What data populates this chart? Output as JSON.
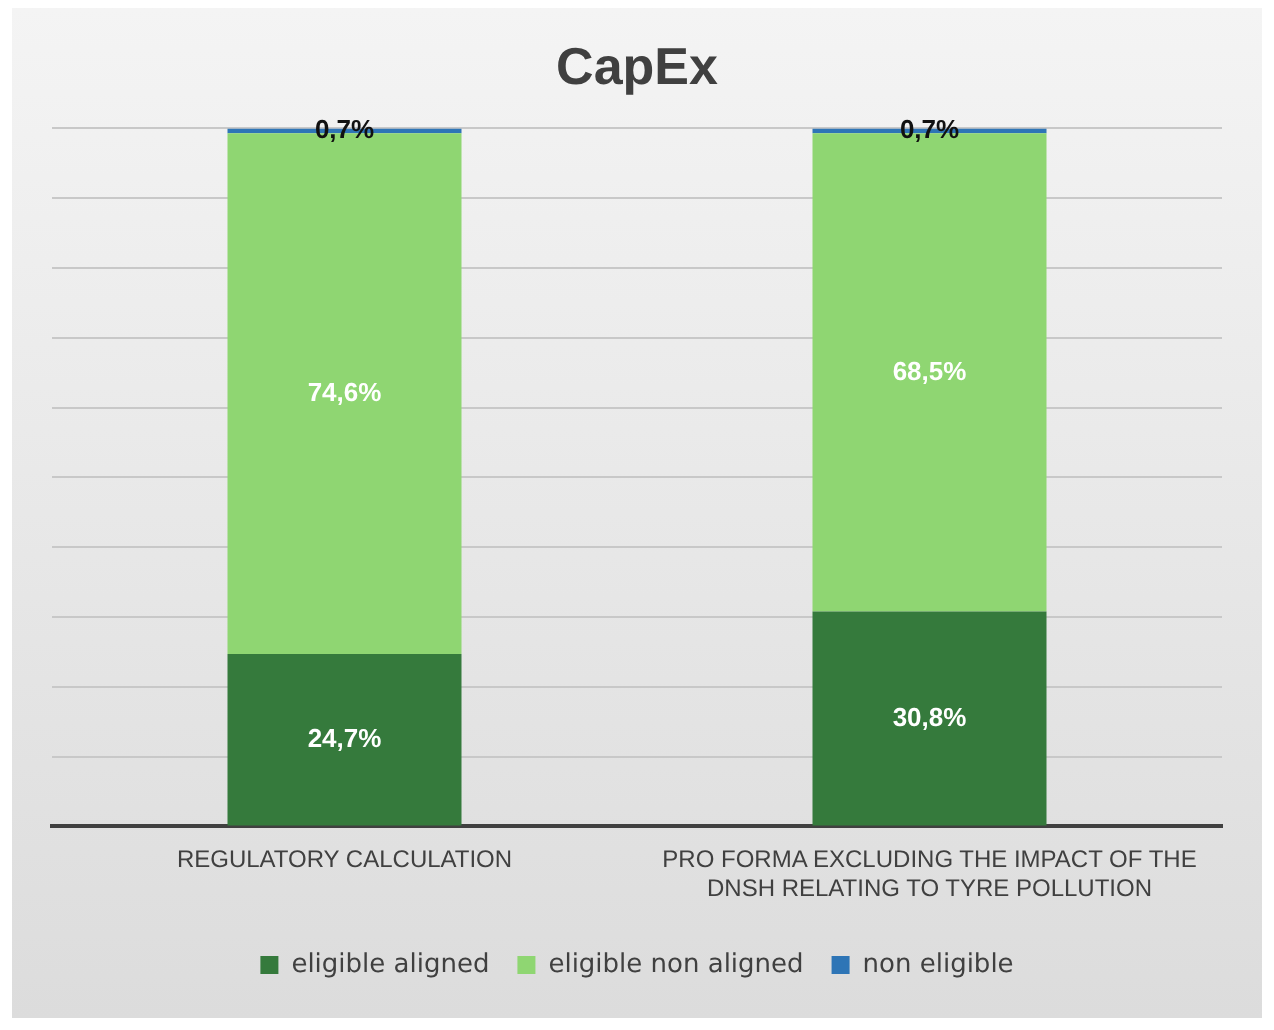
{
  "chart_data": {
    "type": "bar",
    "title": "CapEx",
    "categories": [
      "REGULATORY CALCULATION",
      "PRO FORMA EXCLUDING THE IMPACT OF THE DNSH RELATING TO TYRE POLLUTION"
    ],
    "stacked": true,
    "ylim": [
      0,
      100
    ],
    "yticks": [
      {
        "value": 0,
        "label": null
      },
      {
        "value": 10,
        "label": null
      },
      {
        "value": 20,
        "label": null
      },
      {
        "value": 30,
        "label": null
      },
      {
        "value": 40,
        "label": null
      },
      {
        "value": 50,
        "label": null
      },
      {
        "value": 60,
        "label": null
      },
      {
        "value": 70,
        "label": null
      },
      {
        "value": 80,
        "label": null
      },
      {
        "value": 90,
        "label": null
      },
      {
        "value": 100,
        "label": null
      }
    ],
    "tick_labels": "x",
    "grid": "y",
    "legend": "bottom",
    "series": [
      {
        "name": "eligible aligned",
        "color": "#357a3c",
        "values": [
          24.7,
          30.8
        ],
        "value_labels": [
          "24,7%",
          "30,8%"
        ]
      },
      {
        "name": "eligible non aligned",
        "color": "#8fd672",
        "values": [
          74.6,
          68.5
        ],
        "value_labels": [
          "74,6%",
          "68,5%"
        ]
      },
      {
        "name": "non eligible",
        "color": "#2e75b6",
        "values": [
          0.7,
          0.7
        ],
        "value_labels": [
          "0,7%",
          "0,7%"
        ]
      }
    ]
  }
}
